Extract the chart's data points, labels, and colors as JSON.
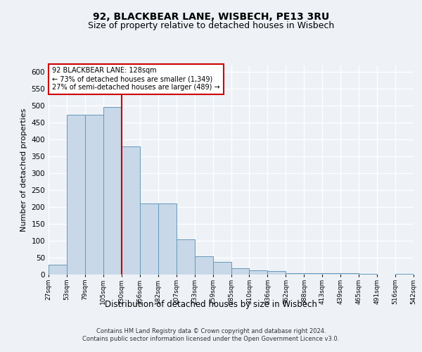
{
  "title1": "92, BLACKBEAR LANE, WISBECH, PE13 3RU",
  "title2": "Size of property relative to detached houses in Wisbech",
  "xlabel": "Distribution of detached houses by size in Wisbech",
  "ylabel": "Number of detached properties",
  "footnote": "Contains HM Land Registry data © Crown copyright and database right 2024.\nContains public sector information licensed under the Open Government Licence v3.0.",
  "bar_values": [
    30,
    473,
    473,
    497,
    380,
    210,
    210,
    104,
    55,
    37,
    18,
    13,
    10,
    5,
    5,
    4,
    4,
    2,
    1,
    3
  ],
  "bar_labels": [
    "27sqm",
    "53sqm",
    "79sqm",
    "105sqm",
    "130sqm",
    "156sqm",
    "182sqm",
    "207sqm",
    "233sqm",
    "259sqm",
    "285sqm",
    "310sqm",
    "336sqm",
    "362sqm",
    "388sqm",
    "413sqm",
    "439sqm",
    "465sqm",
    "491sqm",
    "516sqm",
    "542sqm"
  ],
  "bar_color": "#c8d8e8",
  "bar_edge_color": "#6699bb",
  "vline_x": 4,
  "vline_color": "#cc0000",
  "annotation_text": "92 BLACKBEAR LANE: 128sqm\n← 73% of detached houses are smaller (1,349)\n27% of semi-detached houses are larger (489) →",
  "annotation_box_color": "#ffffff",
  "annotation_box_edge": "#cc0000",
  "ylim": [
    0,
    620
  ],
  "yticks": [
    0,
    50,
    100,
    150,
    200,
    250,
    300,
    350,
    400,
    450,
    500,
    550,
    600
  ],
  "bg_color": "#eef2f7",
  "plot_bg_color": "#eef2f7",
  "title1_fontsize": 10,
  "title2_fontsize": 9,
  "xlabel_fontsize": 8.5,
  "ylabel_fontsize": 8
}
